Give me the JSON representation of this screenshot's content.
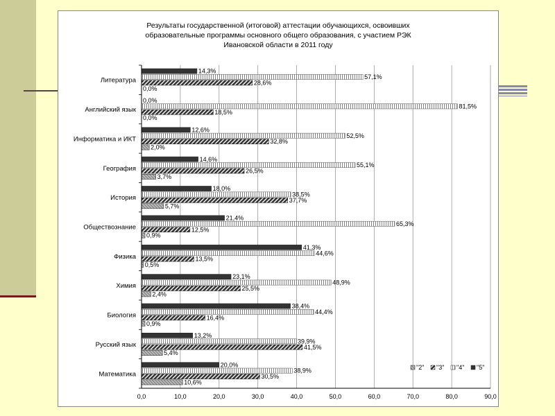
{
  "chart_data": {
    "type": "bar",
    "orientation": "horizontal",
    "title_lines": [
      "Результаты государственной (итоговой) аттестации обучающихся, освоивших",
      "образовательные программы основного общего образования, с участием РЭК",
      "Ивановской области в 2011 году"
    ],
    "categories": [
      "Литература",
      "Английский язык",
      "Информатика и ИКТ",
      "География",
      "История",
      "Обществознание",
      "Физика",
      "Химия",
      "Биология",
      "Русский язык",
      "Математика"
    ],
    "series": [
      {
        "name": "\"5\"",
        "values": [
          14.3,
          0.0,
          12.6,
          14.6,
          18.0,
          21.4,
          41.3,
          23.1,
          38.4,
          13.2,
          20.0
        ],
        "labels": [
          "14,3%",
          "0,0%",
          "12,6%",
          "14,6%",
          "18,0%",
          "21,4%",
          "41,3%",
          "23,1%",
          "38,4%",
          "13,2%",
          "20,0%"
        ]
      },
      {
        "name": "\"4\"",
        "values": [
          57.1,
          81.5,
          52.5,
          55.1,
          38.5,
          65.3,
          44.6,
          48.9,
          44.4,
          39.9,
          38.9
        ],
        "labels": [
          "57,1%",
          "81,5%",
          "52,5%",
          "55,1%",
          "38,5%",
          "65,3%",
          "44,6%",
          "48,9%",
          "44,4%",
          "39,9%",
          "38,9%"
        ]
      },
      {
        "name": "\"3\"",
        "values": [
          28.6,
          18.5,
          32.8,
          26.5,
          37.7,
          12.5,
          13.5,
          25.5,
          16.4,
          41.5,
          30.5
        ],
        "labels": [
          "28,6%",
          "18,5%",
          "32,8%",
          "26,5%",
          "37,7%",
          "12,5%",
          "13,5%",
          "25,5%",
          "16,4%",
          "41,5%",
          "30,5%"
        ]
      },
      {
        "name": "\"2\"",
        "values": [
          0.0,
          0.0,
          2.0,
          3.7,
          5.7,
          0.9,
          0.5,
          2.4,
          0.9,
          5.4,
          10.6
        ],
        "labels": [
          "0,0%",
          "0,0%",
          "2,0%",
          "3,7%",
          "5,7%",
          "0,9%",
          "0,5%",
          "2,4%",
          "0,9%",
          "5,4%",
          "10,6%"
        ]
      }
    ],
    "legend_order": [
      "\"2\"",
      "\"3\"",
      "\"4\"",
      "\"5\""
    ],
    "x_ticks": [
      "0,0",
      "10,0",
      "20,0",
      "30,0",
      "40,0",
      "50,0",
      "60,0",
      "70,0",
      "80,0",
      "90,0"
    ],
    "xlim": [
      0,
      90
    ],
    "grid": true,
    "legend_position": "bottom-right"
  },
  "colors": {
    "background": "#FFFFCC",
    "side_bar": "#CCCC99",
    "accent_line": "#7A1A1A",
    "five": "#333333",
    "four": "#FFFFFF",
    "three": "#444444",
    "two": "#AAAAAA"
  }
}
